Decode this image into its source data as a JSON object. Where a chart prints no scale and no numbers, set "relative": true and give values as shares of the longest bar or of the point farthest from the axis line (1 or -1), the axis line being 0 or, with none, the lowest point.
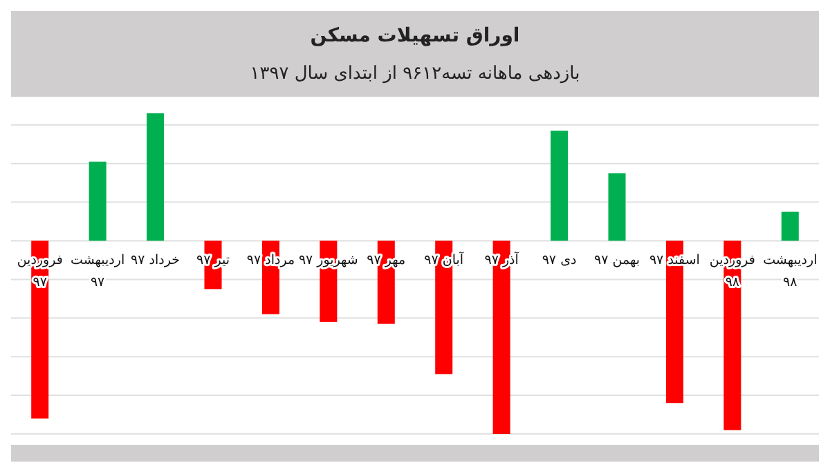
{
  "chart_data": {
    "type": "bar",
    "title": "اوراق تسهیلات مسکن",
    "subtitle": "بازدهی ماهانه تسه۹۶۱۲ از ابتدای سال ۱۳۹۷",
    "relative": true,
    "grid": "y",
    "categories": [
      "فروردین ۹۷",
      "اردیبهشت ۹۷",
      "خرداد ۹۷",
      "تیر ۹۷",
      "مرداد ۹۷",
      "شهریور ۹۷",
      "مهر ۹۷",
      "آبان ۹۷",
      "آذر ۹۷",
      "دی ۹۷",
      "بهمن ۹۷",
      "اسفند ۹۷",
      "فروردین ۹۸",
      "اردیبهشت ۹۸"
    ],
    "values": [
      -0.92,
      0.41,
      0.66,
      -0.25,
      -0.38,
      -0.42,
      -0.43,
      -0.69,
      -1,
      0.57,
      0.35,
      -0.84,
      -0.98,
      0.15
    ],
    "colors": [
      "#ff0000",
      "#00b050",
      "#00b050",
      "#ff0000",
      "#ff0000",
      "#ff0000",
      "#ff0000",
      "#ff0000",
      "#ff0000",
      "#00b050",
      "#00b050",
      "#ff0000",
      "#ff0000",
      "#00b050"
    ]
  }
}
